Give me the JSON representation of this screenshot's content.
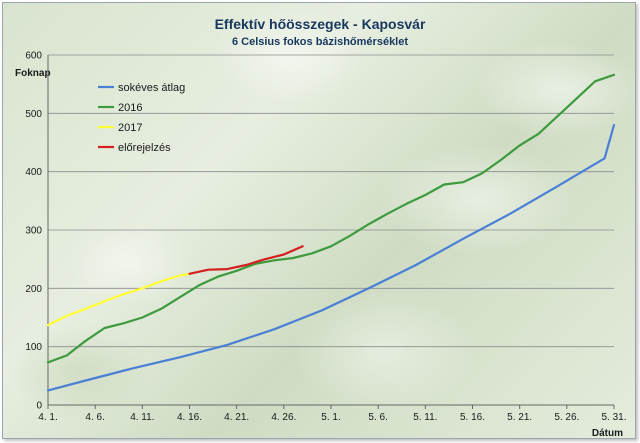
{
  "chart_data": {
    "type": "line",
    "title": "Effektív hőösszegek - Kaposvár",
    "subtitle": "6 Celsius fokos bázishőmérséklet",
    "ylabel": "Foknap",
    "xlabel": "Dátum",
    "ylim": [
      0,
      600
    ],
    "yticks": [
      0,
      100,
      200,
      300,
      400,
      500,
      600
    ],
    "xlim": [
      1,
      61
    ],
    "xticks": [
      {
        "x": 1,
        "label": "4. 1."
      },
      {
        "x": 6,
        "label": "4. 6."
      },
      {
        "x": 11,
        "label": "4. 11."
      },
      {
        "x": 16,
        "label": "4. 16."
      },
      {
        "x": 21,
        "label": "4. 21."
      },
      {
        "x": 26,
        "label": "4. 26."
      },
      {
        "x": 31,
        "label": "5. 1."
      },
      {
        "x": 36,
        "label": "5. 6."
      },
      {
        "x": 41,
        "label": "5. 11."
      },
      {
        "x": 46,
        "label": "5. 16."
      },
      {
        "x": 51,
        "label": "5. 21."
      },
      {
        "x": 56,
        "label": "5. 26."
      },
      {
        "x": 61,
        "label": "5. 31."
      }
    ],
    "grid": true,
    "legend_position": "top-left",
    "series": [
      {
        "name": "sokéves átlag",
        "color": "#4a7fd6",
        "x": [
          1,
          5,
          10,
          15,
          20,
          25,
          30,
          35,
          40,
          45,
          50,
          55,
          60,
          61
        ],
        "values": [
          25,
          42,
          63,
          82,
          103,
          130,
          162,
          200,
          240,
          285,
          328,
          375,
          423,
          480
        ]
      },
      {
        "name": "2016",
        "color": "#3d9b3d",
        "x": [
          1,
          3,
          5,
          7,
          9,
          11,
          13,
          15,
          17,
          19,
          21,
          23,
          25,
          27,
          29,
          31,
          33,
          35,
          37,
          39,
          41,
          43,
          45,
          47,
          49,
          51,
          53,
          55,
          57,
          59,
          61
        ],
        "values": [
          73,
          85,
          110,
          132,
          140,
          150,
          165,
          185,
          205,
          220,
          230,
          242,
          248,
          252,
          260,
          272,
          290,
          310,
          328,
          345,
          360,
          378,
          382,
          397,
          420,
          445,
          465,
          495,
          525,
          555,
          566
        ]
      },
      {
        "name": "2017",
        "color": "#ffff33",
        "x": [
          1,
          3,
          5,
          7,
          9,
          11,
          13,
          15,
          16
        ],
        "values": [
          137,
          153,
          165,
          178,
          190,
          200,
          212,
          222,
          225
        ]
      },
      {
        "name": "előrejelzés",
        "color": "#d42020",
        "x": [
          16,
          18,
          20,
          22,
          24,
          26,
          28
        ],
        "values": [
          225,
          232,
          233,
          240,
          250,
          258,
          272
        ]
      }
    ]
  }
}
